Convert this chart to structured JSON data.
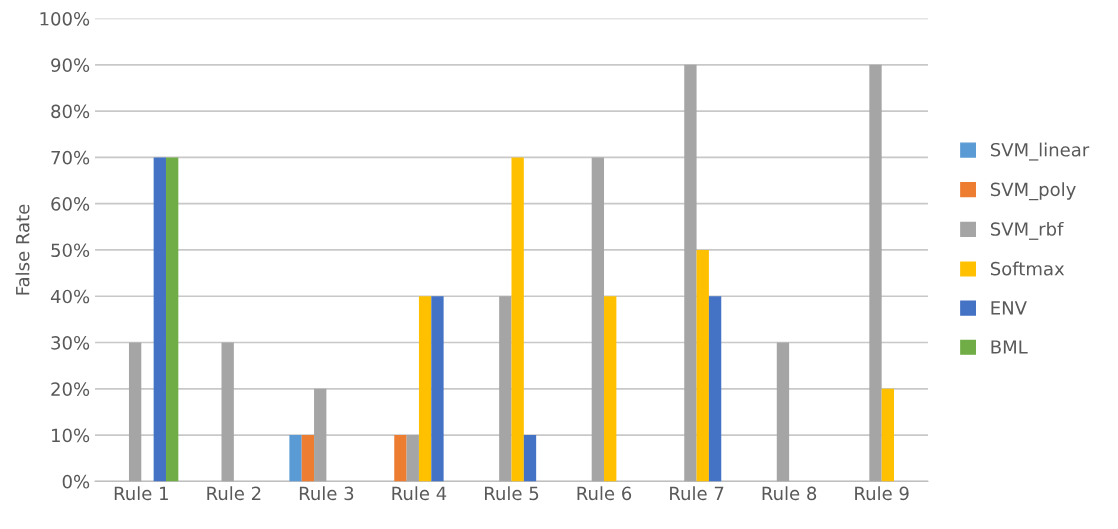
{
  "chart_data": {
    "type": "bar",
    "ylabel": "False Rate",
    "categories": [
      "Rule 1",
      "Rule 2",
      "Rule 3",
      "Rule 4",
      "Rule 5",
      "Rule 6",
      "Rule 7",
      "Rule 8",
      "Rule 9"
    ],
    "series": [
      {
        "name": "SVM_linear",
        "color": "#5b9bd5",
        "values": [
          0,
          0,
          10,
          0,
          0,
          0,
          0,
          0,
          0
        ]
      },
      {
        "name": "SVM_poly",
        "color": "#ed7d31",
        "values": [
          0,
          0,
          10,
          10,
          0,
          0,
          0,
          0,
          0
        ]
      },
      {
        "name": "SVM_rbf",
        "color": "#a5a5a5",
        "values": [
          30,
          30,
          20,
          10,
          40,
          70,
          90,
          30,
          90
        ]
      },
      {
        "name": "Softmax",
        "color": "#ffc000",
        "values": [
          0,
          0,
          0,
          40,
          70,
          40,
          50,
          0,
          20
        ]
      },
      {
        "name": "ENV",
        "color": "#4472c4",
        "values": [
          70,
          0,
          0,
          40,
          10,
          0,
          40,
          0,
          0
        ]
      },
      {
        "name": "BML",
        "color": "#70ad47",
        "values": [
          70,
          0,
          0,
          0,
          0,
          0,
          0,
          0,
          0
        ]
      }
    ],
    "ylim": [
      0,
      100
    ],
    "yticks": [
      {
        "value": 0,
        "label": "0%"
      },
      {
        "value": 10,
        "label": "10%"
      },
      {
        "value": 20,
        "label": "20%"
      },
      {
        "value": 30,
        "label": "30%"
      },
      {
        "value": 40,
        "label": "40%"
      },
      {
        "value": 50,
        "label": "50%"
      },
      {
        "value": 60,
        "label": "60%"
      },
      {
        "value": 70,
        "label": "70%"
      },
      {
        "value": 80,
        "label": "80%"
      },
      {
        "value": 90,
        "label": "90%"
      },
      {
        "value": 100,
        "label": "100%"
      }
    ],
    "grid": "y",
    "legend": "right"
  }
}
